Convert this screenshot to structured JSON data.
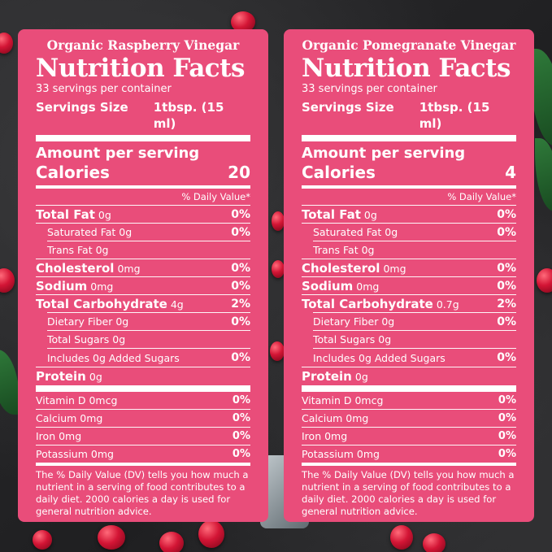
{
  "cards": {
    "left": {
      "product": "Organic Raspberry Vinegar",
      "title": "Nutrition Facts",
      "servings_per_container": "33 servings per container",
      "serving_size_label": "Servings Size",
      "serving_size_value": "1tbsp. (15 ml)",
      "amount_per_serving": "Amount per serving",
      "calories_label": "Calories",
      "calories_value": "20",
      "dv_header": "% Daily Value*",
      "total_fat": {
        "name": "Total Fat",
        "amount": "0g",
        "pct": "0%"
      },
      "saturated_fat": {
        "label": "Saturated Fat 0g",
        "pct": "0%"
      },
      "trans_fat": {
        "label": "Trans Fat 0g"
      },
      "cholesterol": {
        "name": "Cholesterol",
        "amount": "0mg",
        "pct": "0%"
      },
      "sodium": {
        "name": "Sodium",
        "amount": "0mg",
        "pct": "0%"
      },
      "total_carb": {
        "name": "Total Carbohydrate",
        "amount": "4g",
        "pct": "2%"
      },
      "dietary_fiber": {
        "label": "Dietary Fiber 0g",
        "pct": "0%"
      },
      "total_sugars": {
        "label": "Total Sugars 0g"
      },
      "added_sugars": {
        "label": "Includes 0g Added Sugars",
        "pct": "0%"
      },
      "protein": {
        "name": "Protein",
        "amount": "0g"
      },
      "vitamin_d": {
        "label": "Vitamin D 0mcg",
        "pct": "0%"
      },
      "calcium": {
        "label": "Calcium 0mg",
        "pct": "0%"
      },
      "iron": {
        "label": "Iron 0mg",
        "pct": "0%"
      },
      "potassium": {
        "label": "Potassium 0mg",
        "pct": "0%"
      },
      "footnote": "The % Daily Value (DV) tells you how much a nutrient in a serving of food contributes to a daily diet. 2000 calories a day is used for general nutrition advice."
    },
    "right": {
      "product": "Organic Pomegranate Vinegar",
      "title": "Nutrition Facts",
      "servings_per_container": "33 servings per container",
      "serving_size_label": "Servings Size",
      "serving_size_value": "1tbsp. (15 ml)",
      "amount_per_serving": "Amount per serving",
      "calories_label": "Calories",
      "calories_value": "4",
      "dv_header": "% Daily Value*",
      "total_fat": {
        "name": "Total Fat",
        "amount": "0g",
        "pct": "0%"
      },
      "saturated_fat": {
        "label": "Saturated Fat 0g",
        "pct": "0%"
      },
      "trans_fat": {
        "label": "Trans Fat 0g"
      },
      "cholesterol": {
        "name": "Cholesterol",
        "amount": "0mg",
        "pct": "0%"
      },
      "sodium": {
        "name": "Sodium",
        "amount": "0mg",
        "pct": "0%"
      },
      "total_carb": {
        "name": "Total Carbohydrate",
        "amount": "0.7g",
        "pct": "2%"
      },
      "dietary_fiber": {
        "label": "Dietary Fiber 0g",
        "pct": "0%"
      },
      "total_sugars": {
        "label": "Total Sugars 0g"
      },
      "added_sugars": {
        "label": "Includes 0g Added Sugars",
        "pct": "0%"
      },
      "protein": {
        "name": "Protein",
        "amount": "0g"
      },
      "vitamin_d": {
        "label": "Vitamin D 0mcg",
        "pct": "0%"
      },
      "calcium": {
        "label": "Calcium 0mg",
        "pct": "0%"
      },
      "iron": {
        "label": "Iron 0mg",
        "pct": "0%"
      },
      "potassium": {
        "label": "Potassium 0mg",
        "pct": "0%"
      },
      "footnote": "The % Daily Value (DV) tells you how much a nutrient in a serving of food contributes to a daily diet. 2000 calories a day is used for general nutrition advice."
    }
  },
  "colors": {
    "label_pink": "#e94d7a",
    "text": "#ffffff",
    "background": "#2a2a2c"
  }
}
